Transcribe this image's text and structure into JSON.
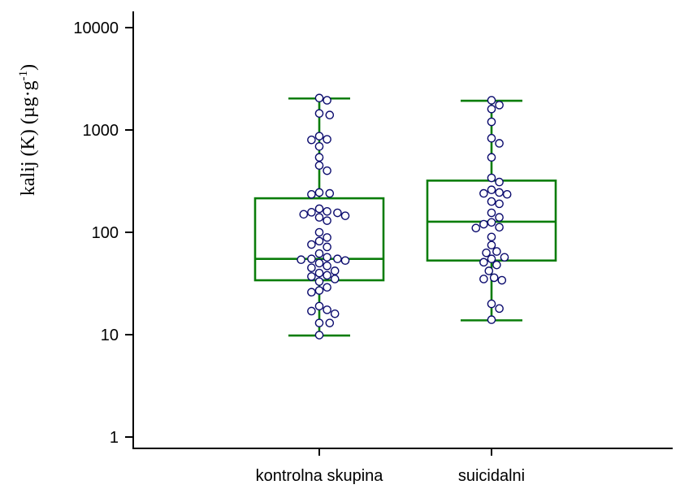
{
  "chart_data": {
    "type": "box",
    "y_scale": "log",
    "ylim": [
      0.7,
      14000
    ],
    "yticks": [
      1,
      10,
      100,
      1000,
      10000
    ],
    "ytick_labels": [
      "1",
      "10",
      "100",
      "1000",
      "10000"
    ],
    "ylabel": {
      "main": "kalij (K) (µg·g",
      "sup": "-1",
      "tail": ")"
    },
    "categories": [
      "kontrolna skupina",
      "suicidalni"
    ],
    "colors": {
      "box": "#0a7d0a",
      "point_stroke": "#0b0b6e",
      "point_fill": "#ffffff",
      "axis": "#000000"
    },
    "boxes": [
      {
        "category": "kontrolna skupina",
        "whisker_low": 9.8,
        "q1": 34,
        "median": 55,
        "q3": 215,
        "whisker_high": 2030,
        "points": [
          2050,
          1950,
          1450,
          1400,
          870,
          810,
          800,
          690,
          540,
          450,
          400,
          245,
          240,
          235,
          170,
          160,
          157,
          155,
          150,
          145,
          140,
          130,
          100,
          89,
          82,
          76,
          72,
          62,
          57,
          55,
          55,
          54,
          53,
          50,
          47,
          45,
          42,
          40,
          38,
          37,
          35,
          33,
          29,
          27,
          26,
          19,
          17.5,
          17,
          16,
          13,
          13,
          9.9
        ]
      },
      {
        "category": "suicidalni",
        "whisker_low": 13.8,
        "q1": 53,
        "median": 127,
        "q3": 320,
        "whisker_high": 1930,
        "points": [
          1950,
          1750,
          1600,
          1200,
          830,
          740,
          540,
          340,
          310,
          260,
          245,
          240,
          235,
          200,
          190,
          155,
          140,
          125,
          120,
          112,
          110,
          90,
          75,
          65,
          63,
          57,
          55,
          51,
          48,
          42,
          36,
          35,
          34,
          20,
          18,
          14
        ]
      }
    ]
  }
}
